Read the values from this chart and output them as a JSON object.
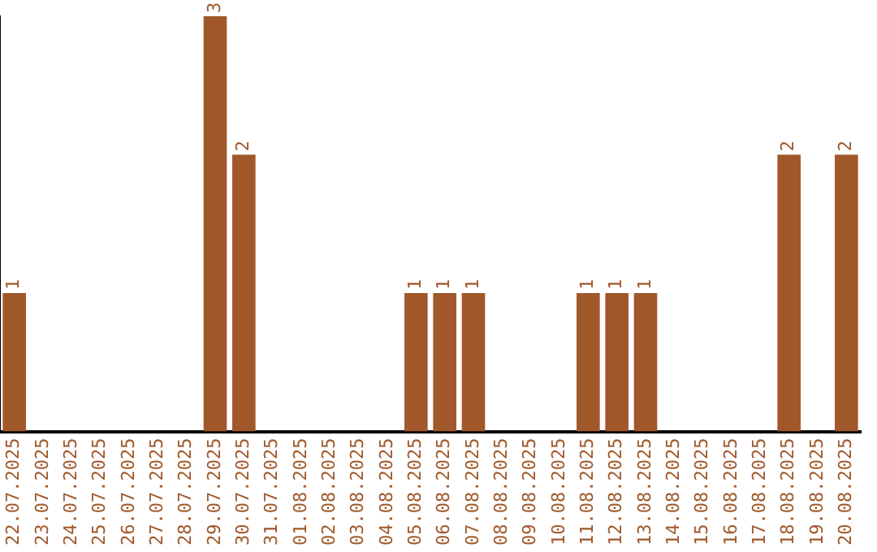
{
  "chart_data": {
    "type": "bar",
    "categories": [
      "22.07.2025",
      "23.07.2025",
      "24.07.2025",
      "25.07.2025",
      "26.07.2025",
      "27.07.2025",
      "28.07.2025",
      "29.07.2025",
      "30.07.2025",
      "31.07.2025",
      "01.08.2025",
      "02.08.2025",
      "03.08.2025",
      "04.08.2025",
      "05.08.2025",
      "06.08.2025",
      "07.08.2025",
      "08.08.2025",
      "09.08.2025",
      "10.08.2025",
      "11.08.2025",
      "12.08.2025",
      "13.08.2025",
      "14.08.2025",
      "15.08.2025",
      "16.08.2025",
      "17.08.2025",
      "18.08.2025",
      "19.08.2025",
      "20.08.2025"
    ],
    "values": [
      1,
      0,
      0,
      0,
      0,
      0,
      0,
      3,
      2,
      0,
      0,
      0,
      0,
      0,
      1,
      1,
      1,
      0,
      0,
      0,
      1,
      1,
      1,
      0,
      0,
      0,
      0,
      2,
      0,
      2
    ],
    "value_labels": [
      "1",
      null,
      null,
      null,
      null,
      null,
      null,
      "3",
      "2",
      null,
      null,
      null,
      null,
      null,
      "1",
      "1",
      "1",
      null,
      null,
      null,
      "1",
      "1",
      "1",
      null,
      null,
      null,
      null,
      "2",
      null,
      "2"
    ],
    "color": "#a0582a",
    "grid": false,
    "legend": false
  }
}
